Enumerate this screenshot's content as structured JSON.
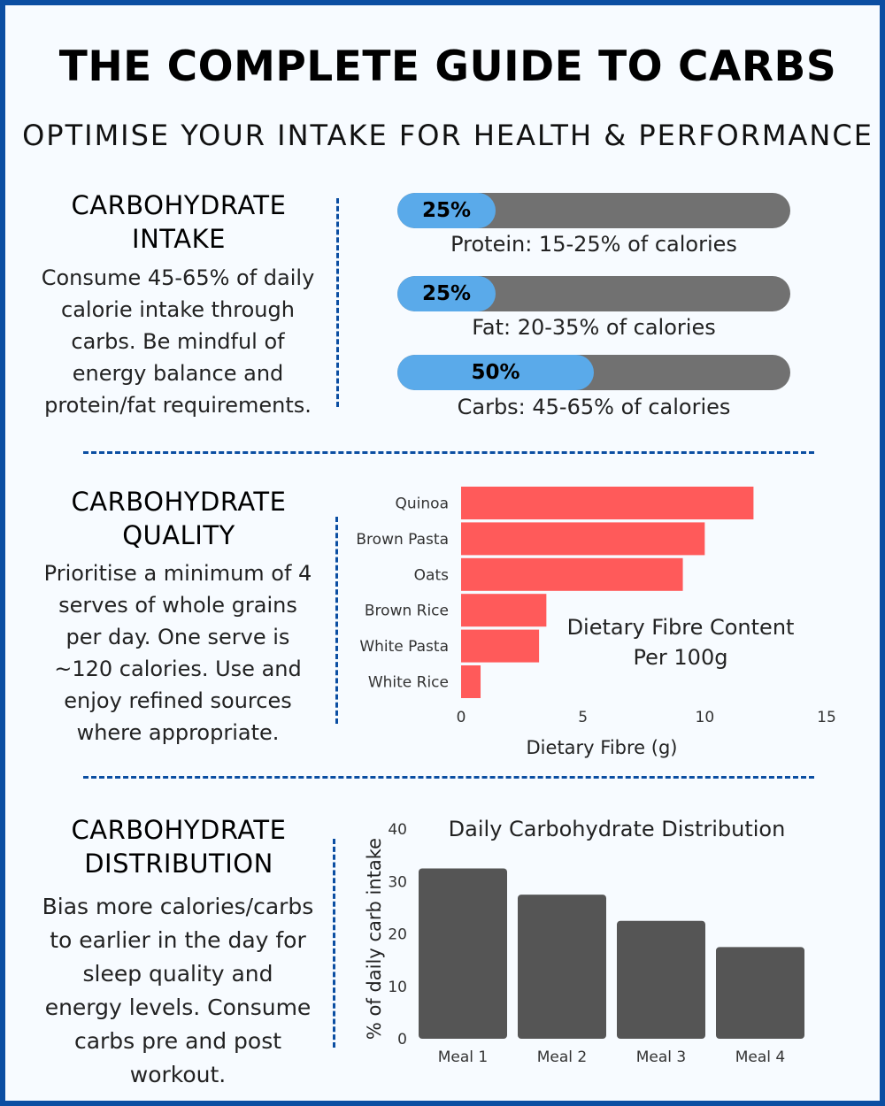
{
  "title": "THE COMPLETE GUIDE TO CARBS",
  "subtitle": "OPTIMISE YOUR INTAKE FOR HEALTH & PERFORMANCE",
  "sections": [
    {
      "heading_line1": "CARBOHYDRATE",
      "heading_line2": "INTAKE",
      "text": "Consume 45-65% of daily calorie intake through carbs. Be mindful of energy balance and protein/fat requirements."
    },
    {
      "heading_line1": "CARBOHYDRATE",
      "heading_line2": "QUALITY",
      "text": "Prioritise a minimum of 4 serves of whole grains per day. One serve is ~120 calories. Use and enjoy refined sources where appropriate."
    },
    {
      "heading_line1": "CARBOHYDRATE",
      "heading_line2": "DISTRIBUTION",
      "text": "Bias more calories/carbs to earlier in the day for sleep quality and energy levels. Consume carbs pre and post workout."
    }
  ],
  "colors": {
    "border": "#0b4ea2",
    "progress_fill": "#5aaaea",
    "progress_track": "#717171",
    "fibre_bar": "#ff5a5a",
    "meal_bar": "#555555"
  },
  "chart_data": [
    {
      "type": "bar",
      "orientation": "horizontal-progress",
      "items": [
        {
          "label": "25%",
          "value": 25,
          "caption": "Protein: 15-25% of calories"
        },
        {
          "label": "25%",
          "value": 25,
          "caption": "Fat: 20-35% of calories"
        },
        {
          "label": "50%",
          "value": 50,
          "caption": "Carbs: 45-65% of calories"
        }
      ],
      "xlim": [
        0,
        100
      ]
    },
    {
      "type": "bar",
      "orientation": "horizontal",
      "title": "Dietary Fibre Content Per 100g",
      "title_line1": "Dietary Fibre Content",
      "title_line2": "Per 100g",
      "xlabel": "Dietary Fibre (g)",
      "categories": [
        "Quinoa",
        "Brown Pasta",
        "Oats",
        "Brown Rice",
        "White Pasta",
        "White Rice"
      ],
      "values": [
        12,
        10,
        9.1,
        3.5,
        3.2,
        0.8
      ],
      "xlim": [
        0,
        15
      ],
      "xticks": [
        "0",
        "5",
        "10",
        "15"
      ],
      "grid": false
    },
    {
      "type": "bar",
      "title": "Daily Carbohydrate Distribution",
      "ylabel": "% of daily carb intake",
      "categories": [
        "Meal 1",
        "Meal 2",
        "Meal 3",
        "Meal 4"
      ],
      "values": [
        32.5,
        27.5,
        22.5,
        17.5
      ],
      "ylim": [
        0,
        40
      ],
      "yticks": [
        "0",
        "10",
        "20",
        "30",
        "40"
      ],
      "grid": false
    }
  ]
}
